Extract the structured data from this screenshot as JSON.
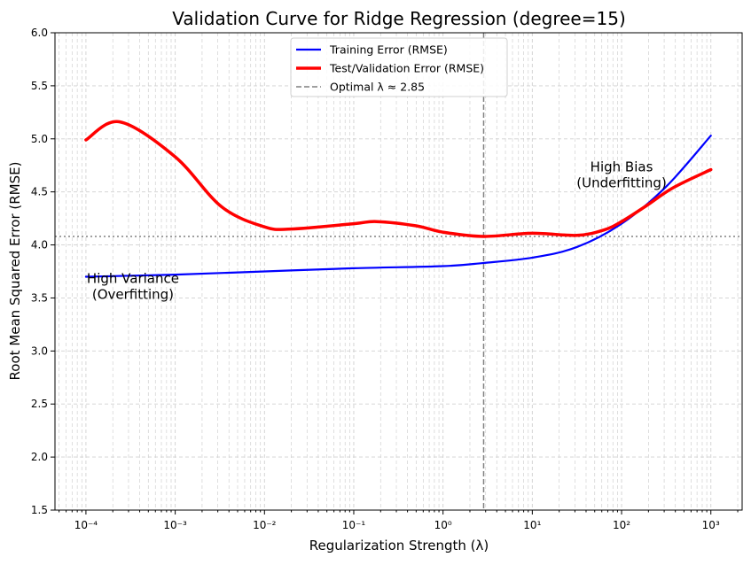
{
  "chart_data": {
    "type": "line",
    "title": "Validation Curve for Ridge Regression (degree=15)",
    "xlabel": "Regularization Strength (λ)",
    "ylabel": "Root Mean Squared Error (RMSE)",
    "xscale": "log",
    "xlim": [
      4.5e-05,
      2240
    ],
    "ylim": [
      1.5,
      6.0
    ],
    "grid": true,
    "legend_position": "top-center",
    "x_tick_labels": [
      "10⁻⁴",
      "10⁻³",
      "10⁻²",
      "10⁻¹",
      "10⁰",
      "10¹",
      "10²",
      "10³"
    ],
    "x_tick_values": [
      0.0001,
      0.001,
      0.01,
      0.1,
      1,
      10,
      100,
      1000
    ],
    "y_ticks": [
      1.5,
      2.0,
      2.5,
      3.0,
      3.5,
      4.0,
      4.5,
      5.0,
      5.5,
      6.0
    ],
    "y_tick_labels": [
      "1.5",
      "2.0",
      "2.5",
      "3.0",
      "3.5",
      "4.0",
      "4.5",
      "5.0",
      "5.5",
      "6.0"
    ],
    "series": [
      {
        "name": "Training Error (RMSE)",
        "color": "#0000ff",
        "x": [
          0.0001,
          0.001,
          0.01,
          0.1,
          1,
          2.85,
          10,
          31.6,
          100,
          316,
          1000
        ],
        "y": [
          3.7,
          3.72,
          3.75,
          3.78,
          3.8,
          3.83,
          3.88,
          3.98,
          4.2,
          4.55,
          5.03
        ]
      },
      {
        "name": "Test/Validation Error (RMSE)",
        "color": "#ff0000",
        "x": [
          0.0001,
          0.00024,
          0.001,
          0.0033,
          0.01,
          0.02,
          0.1,
          0.18,
          0.5,
          1,
          2.85,
          10,
          31.6,
          63,
          100,
          190,
          380,
          1000
        ],
        "y": [
          4.99,
          5.16,
          4.83,
          4.36,
          4.17,
          4.15,
          4.2,
          4.22,
          4.18,
          4.12,
          4.08,
          4.11,
          4.09,
          4.14,
          4.22,
          4.37,
          4.54,
          4.71
        ]
      }
    ],
    "reference_lines": [
      {
        "name": "Optimal λ ≈ 2.85",
        "orientation": "vertical",
        "value": 2.85,
        "style": "dashed",
        "color": "#808080"
      },
      {
        "orientation": "horizontal",
        "value": 4.08,
        "style": "dotted",
        "color": "#808080"
      }
    ],
    "annotations": [
      {
        "text": [
          "High Variance",
          "(Overfitting)"
        ],
        "x": 0.0003,
        "y": 3.6
      },
      {
        "text": [
          "High Bias",
          "(Underfitting)"
        ],
        "x": 100,
        "y": 4.6
      }
    ]
  }
}
